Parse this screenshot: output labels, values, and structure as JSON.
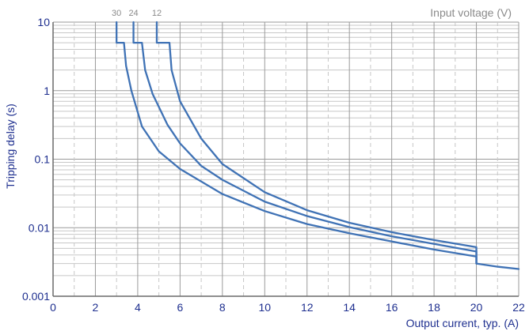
{
  "chart_data": {
    "type": "line",
    "title": "",
    "xlabel": "Output current, typ. (A)",
    "ylabel": "Tripping delay (s)",
    "legend_title": "Input voltage (V)",
    "xlim": [
      0,
      22
    ],
    "ylim": [
      0.001,
      10
    ],
    "y_scale": "log",
    "grid": true,
    "x_ticks": [
      0,
      2,
      4,
      6,
      8,
      10,
      12,
      14,
      16,
      18,
      20,
      22
    ],
    "x_tick_labels": [
      "0",
      "2",
      "4",
      "6",
      "8",
      "10",
      "12",
      "14",
      "16",
      "18",
      "20",
      "22"
    ],
    "y_ticks": [
      0.001,
      0.01,
      0.1,
      1,
      10
    ],
    "y_tick_labels": [
      "0.001",
      "0.01",
      "0.1",
      "1",
      "10"
    ],
    "series": [
      {
        "name": "30",
        "label_x": 3.0,
        "points": [
          [
            3.0,
            10
          ],
          [
            3.0,
            5
          ],
          [
            3.35,
            5
          ],
          [
            3.45,
            2.3
          ],
          [
            3.7,
            1.0
          ],
          [
            4.2,
            0.3
          ],
          [
            5.0,
            0.13
          ],
          [
            6.0,
            0.072
          ],
          [
            8.0,
            0.031
          ],
          [
            10.0,
            0.0175
          ],
          [
            12.0,
            0.0113
          ],
          [
            14.0,
            0.0083
          ],
          [
            16.0,
            0.0063
          ],
          [
            18.0,
            0.0048
          ],
          [
            20.0,
            0.0038
          ],
          [
            20.0,
            0.003
          ],
          [
            21.0,
            0.0027
          ],
          [
            22.0,
            0.0025
          ]
        ]
      },
      {
        "name": "24",
        "label_x": 3.8,
        "points": [
          [
            3.8,
            10
          ],
          [
            3.8,
            5
          ],
          [
            4.2,
            5
          ],
          [
            4.35,
            2.0
          ],
          [
            4.7,
            0.9
          ],
          [
            5.4,
            0.32
          ],
          [
            6.0,
            0.17
          ],
          [
            7.0,
            0.08
          ],
          [
            8.0,
            0.05
          ],
          [
            10.0,
            0.024
          ],
          [
            12.0,
            0.0148
          ],
          [
            14.0,
            0.0102
          ],
          [
            16.0,
            0.0075
          ],
          [
            18.0,
            0.0058
          ],
          [
            20.0,
            0.0045
          ],
          [
            20.0,
            0.003
          ]
        ]
      },
      {
        "name": "12",
        "label_x": 4.9,
        "points": [
          [
            4.9,
            10
          ],
          [
            4.9,
            5
          ],
          [
            5.5,
            5
          ],
          [
            5.6,
            2.0
          ],
          [
            6.0,
            0.7
          ],
          [
            7.0,
            0.2
          ],
          [
            8.0,
            0.085
          ],
          [
            10.0,
            0.033
          ],
          [
            12.0,
            0.018
          ],
          [
            14.0,
            0.0118
          ],
          [
            16.0,
            0.0086
          ],
          [
            18.0,
            0.0066
          ],
          [
            20.0,
            0.0052
          ],
          [
            20.0,
            0.003
          ]
        ]
      }
    ],
    "colors": {
      "line": "#3f72b5",
      "axis_text": "#1e2f8f",
      "legend_text": "#8a8a8a",
      "grid_major": "#9a9a9a",
      "grid_minor": "#c7c7c7",
      "axis": "#6a6a6a"
    }
  }
}
